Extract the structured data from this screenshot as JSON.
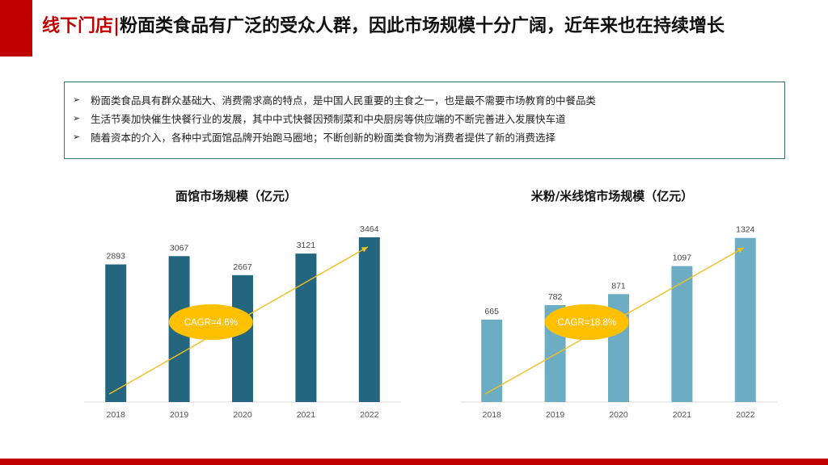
{
  "header": {
    "prefix": "线下门店",
    "separator": "|",
    "text": "粉面类食品有广泛的受众人群，因此市场规模十分广阔，近年来也在持续增长"
  },
  "bullets": [
    "粉面类食品具有群众基础大、消费需求高的特点，是中国人民重要的主食之一，也是最不需要市场教育的中餐品类",
    "生活节奏加快催生快餐行业的发展，其中中式快餐因预制菜和中央厨房等供应端的不断完善进入发展快车道",
    "随着资本的介入，各种中式面馆品牌开始跑马圈地；不断创新的粉面类食物为消费者提供了新的消费选择"
  ],
  "chart_data": [
    {
      "type": "bar",
      "title": "面馆市场规模（亿元）",
      "categories": [
        "2018",
        "2019",
        "2020",
        "2021",
        "2022"
      ],
      "values": [
        2893,
        3067,
        2667,
        3121,
        3464
      ],
      "annotation": "CAGR=4.6%",
      "bar_color": "#24667f",
      "ylim": [
        0,
        3700
      ]
    },
    {
      "type": "bar",
      "title": "米粉/米线馆市场规模（亿元）",
      "categories": [
        "2018",
        "2019",
        "2020",
        "2021",
        "2022"
      ],
      "values": [
        665,
        782,
        871,
        1097,
        1324
      ],
      "annotation": "CAGR=18.8%",
      "bar_color": "#6dadc3",
      "ylim": [
        0,
        1420
      ]
    }
  ],
  "colors": {
    "accent_red": "#c00000",
    "annotation_fill": "#ffc000",
    "trend_arrow": "#f0c020"
  }
}
